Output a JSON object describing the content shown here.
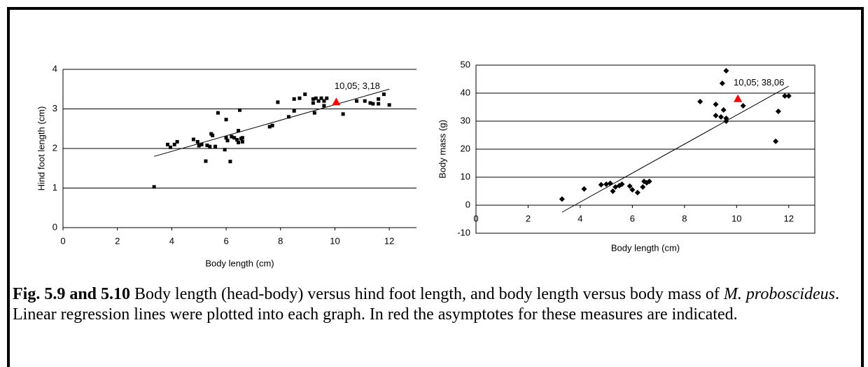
{
  "chart_data": [
    {
      "type": "scatter",
      "x_label": "Body length (cm)",
      "y_label": "Hind foot length (cm)",
      "xlim": [
        0,
        13
      ],
      "xticks": [
        0,
        2,
        4,
        6,
        8,
        10,
        12
      ],
      "ylim": [
        0,
        4
      ],
      "yticks": [
        0,
        1,
        2,
        3,
        4
      ],
      "grid": true,
      "frame": false,
      "marker": "square",
      "color": "#000000",
      "x": [
        3.35,
        3.85,
        3.95,
        4.1,
        4.2,
        4.8,
        4.95,
        5.0,
        5.1,
        5.25,
        5.3,
        5.4,
        5.45,
        5.5,
        5.6,
        5.7,
        5.95,
        6.0,
        6.0,
        6.05,
        6.15,
        6.2,
        6.3,
        6.4,
        6.45,
        6.45,
        6.5,
        6.55,
        6.6,
        6.6,
        7.6,
        7.7,
        7.9,
        8.3,
        8.5,
        8.5,
        8.7,
        8.9,
        9.2,
        9.2,
        9.25,
        9.3,
        9.4,
        9.5,
        9.6,
        9.6,
        9.7,
        10.3,
        10.8,
        11.1,
        11.3,
        11.4,
        11.6,
        11.6,
        11.8,
        12.0
      ],
      "values": [
        1.03,
        2.1,
        2.03,
        2.1,
        2.17,
        2.23,
        2.17,
        2.07,
        2.1,
        1.68,
        2.08,
        2.05,
        2.37,
        2.33,
        2.05,
        2.9,
        1.97,
        2.27,
        2.73,
        2.2,
        1.67,
        2.3,
        2.27,
        2.22,
        2.45,
        2.15,
        2.97,
        2.25,
        2.17,
        2.27,
        2.55,
        2.58,
        3.17,
        2.8,
        3.25,
        2.95,
        3.27,
        3.37,
        3.25,
        3.15,
        2.9,
        3.27,
        3.2,
        3.27,
        3.2,
        3.08,
        3.27,
        2.87,
        3.2,
        3.2,
        3.15,
        3.13,
        3.25,
        3.13,
        3.37,
        3.1
      ],
      "trendline": {
        "x": [
          3.35,
          12.0
        ],
        "y": [
          1.8,
          3.5
        ]
      },
      "highlight": {
        "x": 10.05,
        "y": 3.18,
        "label": "10,05; 3,18",
        "color": "#ff0000"
      }
    },
    {
      "type": "scatter",
      "x_label": "Body length (cm)",
      "y_label": "Body mass (g)",
      "xlim": [
        0,
        13
      ],
      "xticks": [
        0,
        2,
        4,
        6,
        8,
        10,
        12
      ],
      "ylim": [
        -10,
        50
      ],
      "yticks": [
        -10,
        0,
        10,
        20,
        30,
        40,
        50
      ],
      "grid": true,
      "frame": true,
      "marker": "diamond",
      "color": "#000000",
      "x": [
        3.3,
        4.15,
        4.8,
        5.0,
        5.15,
        5.25,
        5.35,
        5.5,
        5.6,
        5.9,
        6.0,
        6.2,
        6.4,
        6.45,
        6.55,
        6.65,
        8.6,
        9.2,
        9.2,
        9.4,
        9.45,
        9.5,
        9.6,
        9.6,
        9.6,
        10.25,
        11.5,
        11.6,
        11.85,
        12.0
      ],
      "values": [
        2.2,
        5.8,
        7.3,
        7.5,
        7.8,
        5,
        6.5,
        7,
        7.5,
        6.8,
        5.5,
        4.5,
        6.5,
        8.5,
        8,
        8.5,
        37,
        36,
        32,
        31.5,
        43.5,
        34,
        48,
        31,
        30,
        35.5,
        22.8,
        33.5,
        39,
        39
      ],
      "trendline": {
        "x": [
          3.3,
          12.0
        ],
        "y": [
          -2.5,
          42.5
        ]
      },
      "highlight": {
        "x": 10.05,
        "y": 38.06,
        "label": "10,05; 38,06",
        "color": "#ff0000"
      }
    }
  ],
  "caption": [
    {
      "text": "Fig. 5.9 and 5.10",
      "bold": true
    },
    {
      "text": " Body length (head-body) versus hind foot length, and body length versus body mass of "
    },
    {
      "text": "M. proboscideus",
      "italic": true
    },
    {
      "text": ". Linear regression lines were plotted into each graph. In red the asymptotes for these measures are indicated."
    }
  ]
}
